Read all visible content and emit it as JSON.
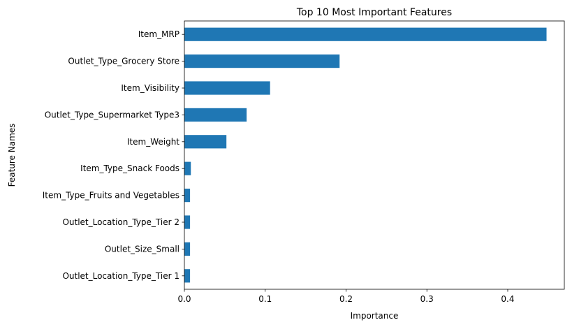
{
  "chart_data": {
    "type": "bar",
    "orientation": "horizontal",
    "title": "Top 10 Most Important Features",
    "xlabel": "Importance",
    "ylabel": "Feature Names",
    "categories": [
      "Item_MRP",
      "Outlet_Type_Grocery Store",
      "Item_Visibility",
      "Outlet_Type_Supermarket Type3",
      "Item_Weight",
      "Item_Type_Snack Foods",
      "Item_Type_Fruits and Vegetables",
      "Outlet_Location_Type_Tier 2",
      "Outlet_Size_Small",
      "Outlet_Location_Type_Tier 1"
    ],
    "values": [
      0.448,
      0.192,
      0.106,
      0.077,
      0.052,
      0.008,
      0.007,
      0.007,
      0.007,
      0.007
    ],
    "xlim": [
      0,
      0.47
    ],
    "xticks": [
      0.0,
      0.1,
      0.2,
      0.3,
      0.4
    ],
    "xtick_labels": [
      "0.0",
      "0.1",
      "0.2",
      "0.3",
      "0.4"
    ],
    "grid": false,
    "bar_color": "#1f77b4"
  }
}
